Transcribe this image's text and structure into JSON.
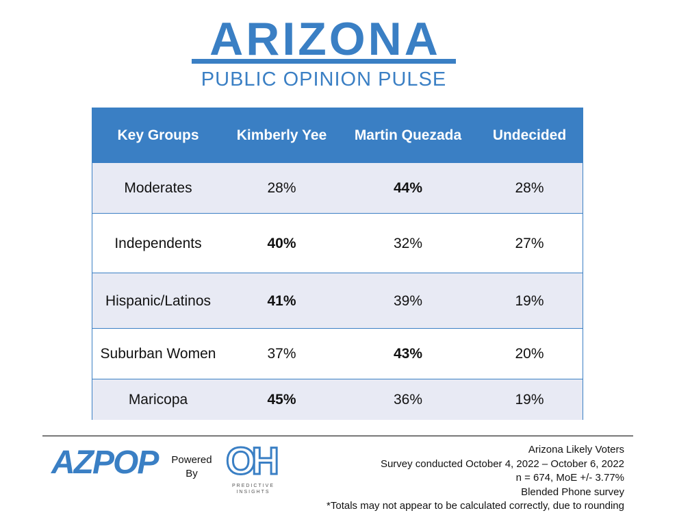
{
  "header": {
    "title": "ARIZONA",
    "subtitle": "PUBLIC OPINION PULSE"
  },
  "table": {
    "columns": [
      "Key Groups",
      "Kimberly Yee",
      "Martin Quezada",
      "Undecided"
    ],
    "rows": [
      {
        "cells": [
          "Moderates",
          "28%",
          "44%",
          "28%"
        ],
        "bold_column": 2
      },
      {
        "cells": [
          "Independents",
          "40%",
          "32%",
          "27%"
        ],
        "bold_column": 1
      },
      {
        "cells": [
          "Hispanic/Latinos",
          "41%",
          "39%",
          "19%"
        ],
        "bold_column": 1
      },
      {
        "cells": [
          "Suburban Women",
          "37%",
          "43%",
          "20%"
        ],
        "bold_column": 2
      },
      {
        "cells": [
          "Maricopa",
          "45%",
          "36%",
          "19%"
        ],
        "bold_column": 1
      }
    ]
  },
  "footer": {
    "logo": "AZPOP",
    "powered_by": [
      "Powered",
      "By"
    ],
    "partner_logo": "OH",
    "partner_name": [
      "PREDICTIVE",
      "INSIGHTS"
    ],
    "notes": [
      "Arizona Likely Voters",
      "Survey conducted October 4, 2022 – October 6, 2022",
      "n = 674, MoE +/- 3.77%",
      "Blended Phone survey",
      "*Totals may not appear to be calculated correctly, due to rounding"
    ]
  }
}
